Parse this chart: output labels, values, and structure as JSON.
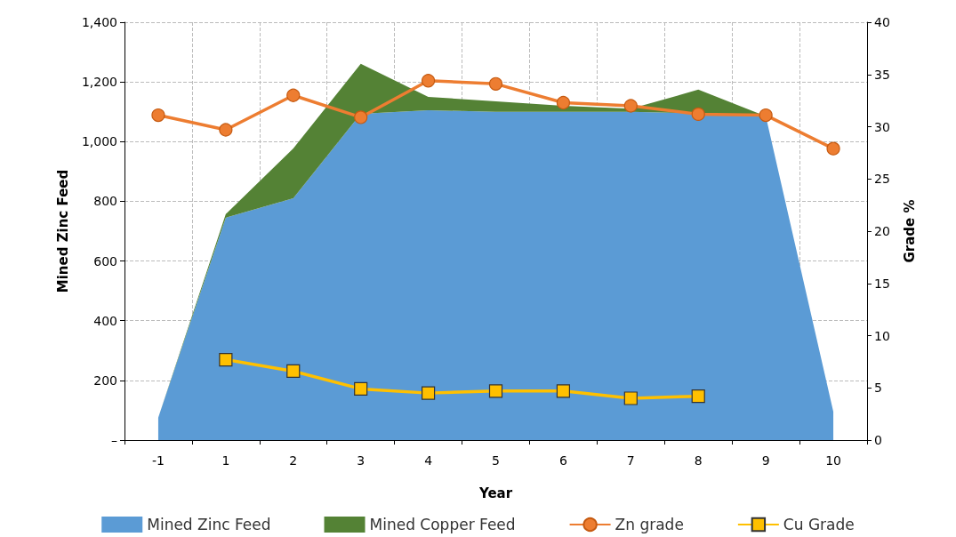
{
  "chart_data": {
    "type": "area",
    "xlabel": "Year",
    "ylabel": "Mined Zinc Feed",
    "y2label": "Grade %",
    "categories": [
      "-1",
      "1",
      "2",
      "3",
      "4",
      "5",
      "6",
      "7",
      "8",
      "9",
      "10"
    ],
    "stacked": true,
    "series": [
      {
        "name": "Mined Zinc Feed",
        "color": "#5b9bd5",
        "values": [
          75,
          745,
          810,
          1093,
          1105,
          1100,
          1100,
          1100,
          1095,
          1085,
          95
        ]
      },
      {
        "name": "Mined Copper Feed",
        "color": "#548235",
        "values": [
          0,
          12,
          167,
          168,
          45,
          35,
          20,
          10,
          79,
          0,
          0
        ]
      },
      {
        "name": "Zn grade",
        "type": "line",
        "axis": "y2",
        "marker": "circle",
        "color": "#ed7d31",
        "values": [
          31.1,
          29.7,
          33.0,
          30.9,
          34.4,
          34.1,
          32.3,
          32.0,
          31.2,
          31.1,
          27.9
        ]
      },
      {
        "name": "Cu Grade",
        "type": "line",
        "axis": "y2",
        "marker": "square",
        "color": "#ffc000",
        "values": [
          null,
          7.7,
          6.6,
          4.9,
          4.5,
          4.7,
          4.7,
          4.0,
          4.2,
          null,
          null
        ]
      }
    ],
    "ylim": [
      0,
      1400
    ],
    "yticks": [
      {
        "value": 0,
        "label": "–"
      },
      {
        "value": 200,
        "label": "200"
      },
      {
        "value": 400,
        "label": "400"
      },
      {
        "value": 600,
        "label": "600"
      },
      {
        "value": 800,
        "label": "800"
      },
      {
        "value": 1000,
        "label": "1,000"
      },
      {
        "value": 1200,
        "label": "1,200"
      },
      {
        "value": 1400,
        "label": "1,400"
      }
    ],
    "y2lim": [
      0,
      40
    ],
    "y2ticks": [
      0,
      5,
      10,
      15,
      20,
      25,
      30,
      35,
      40
    ],
    "grid": true,
    "legend": "bottom",
    "line_style": "solid"
  }
}
